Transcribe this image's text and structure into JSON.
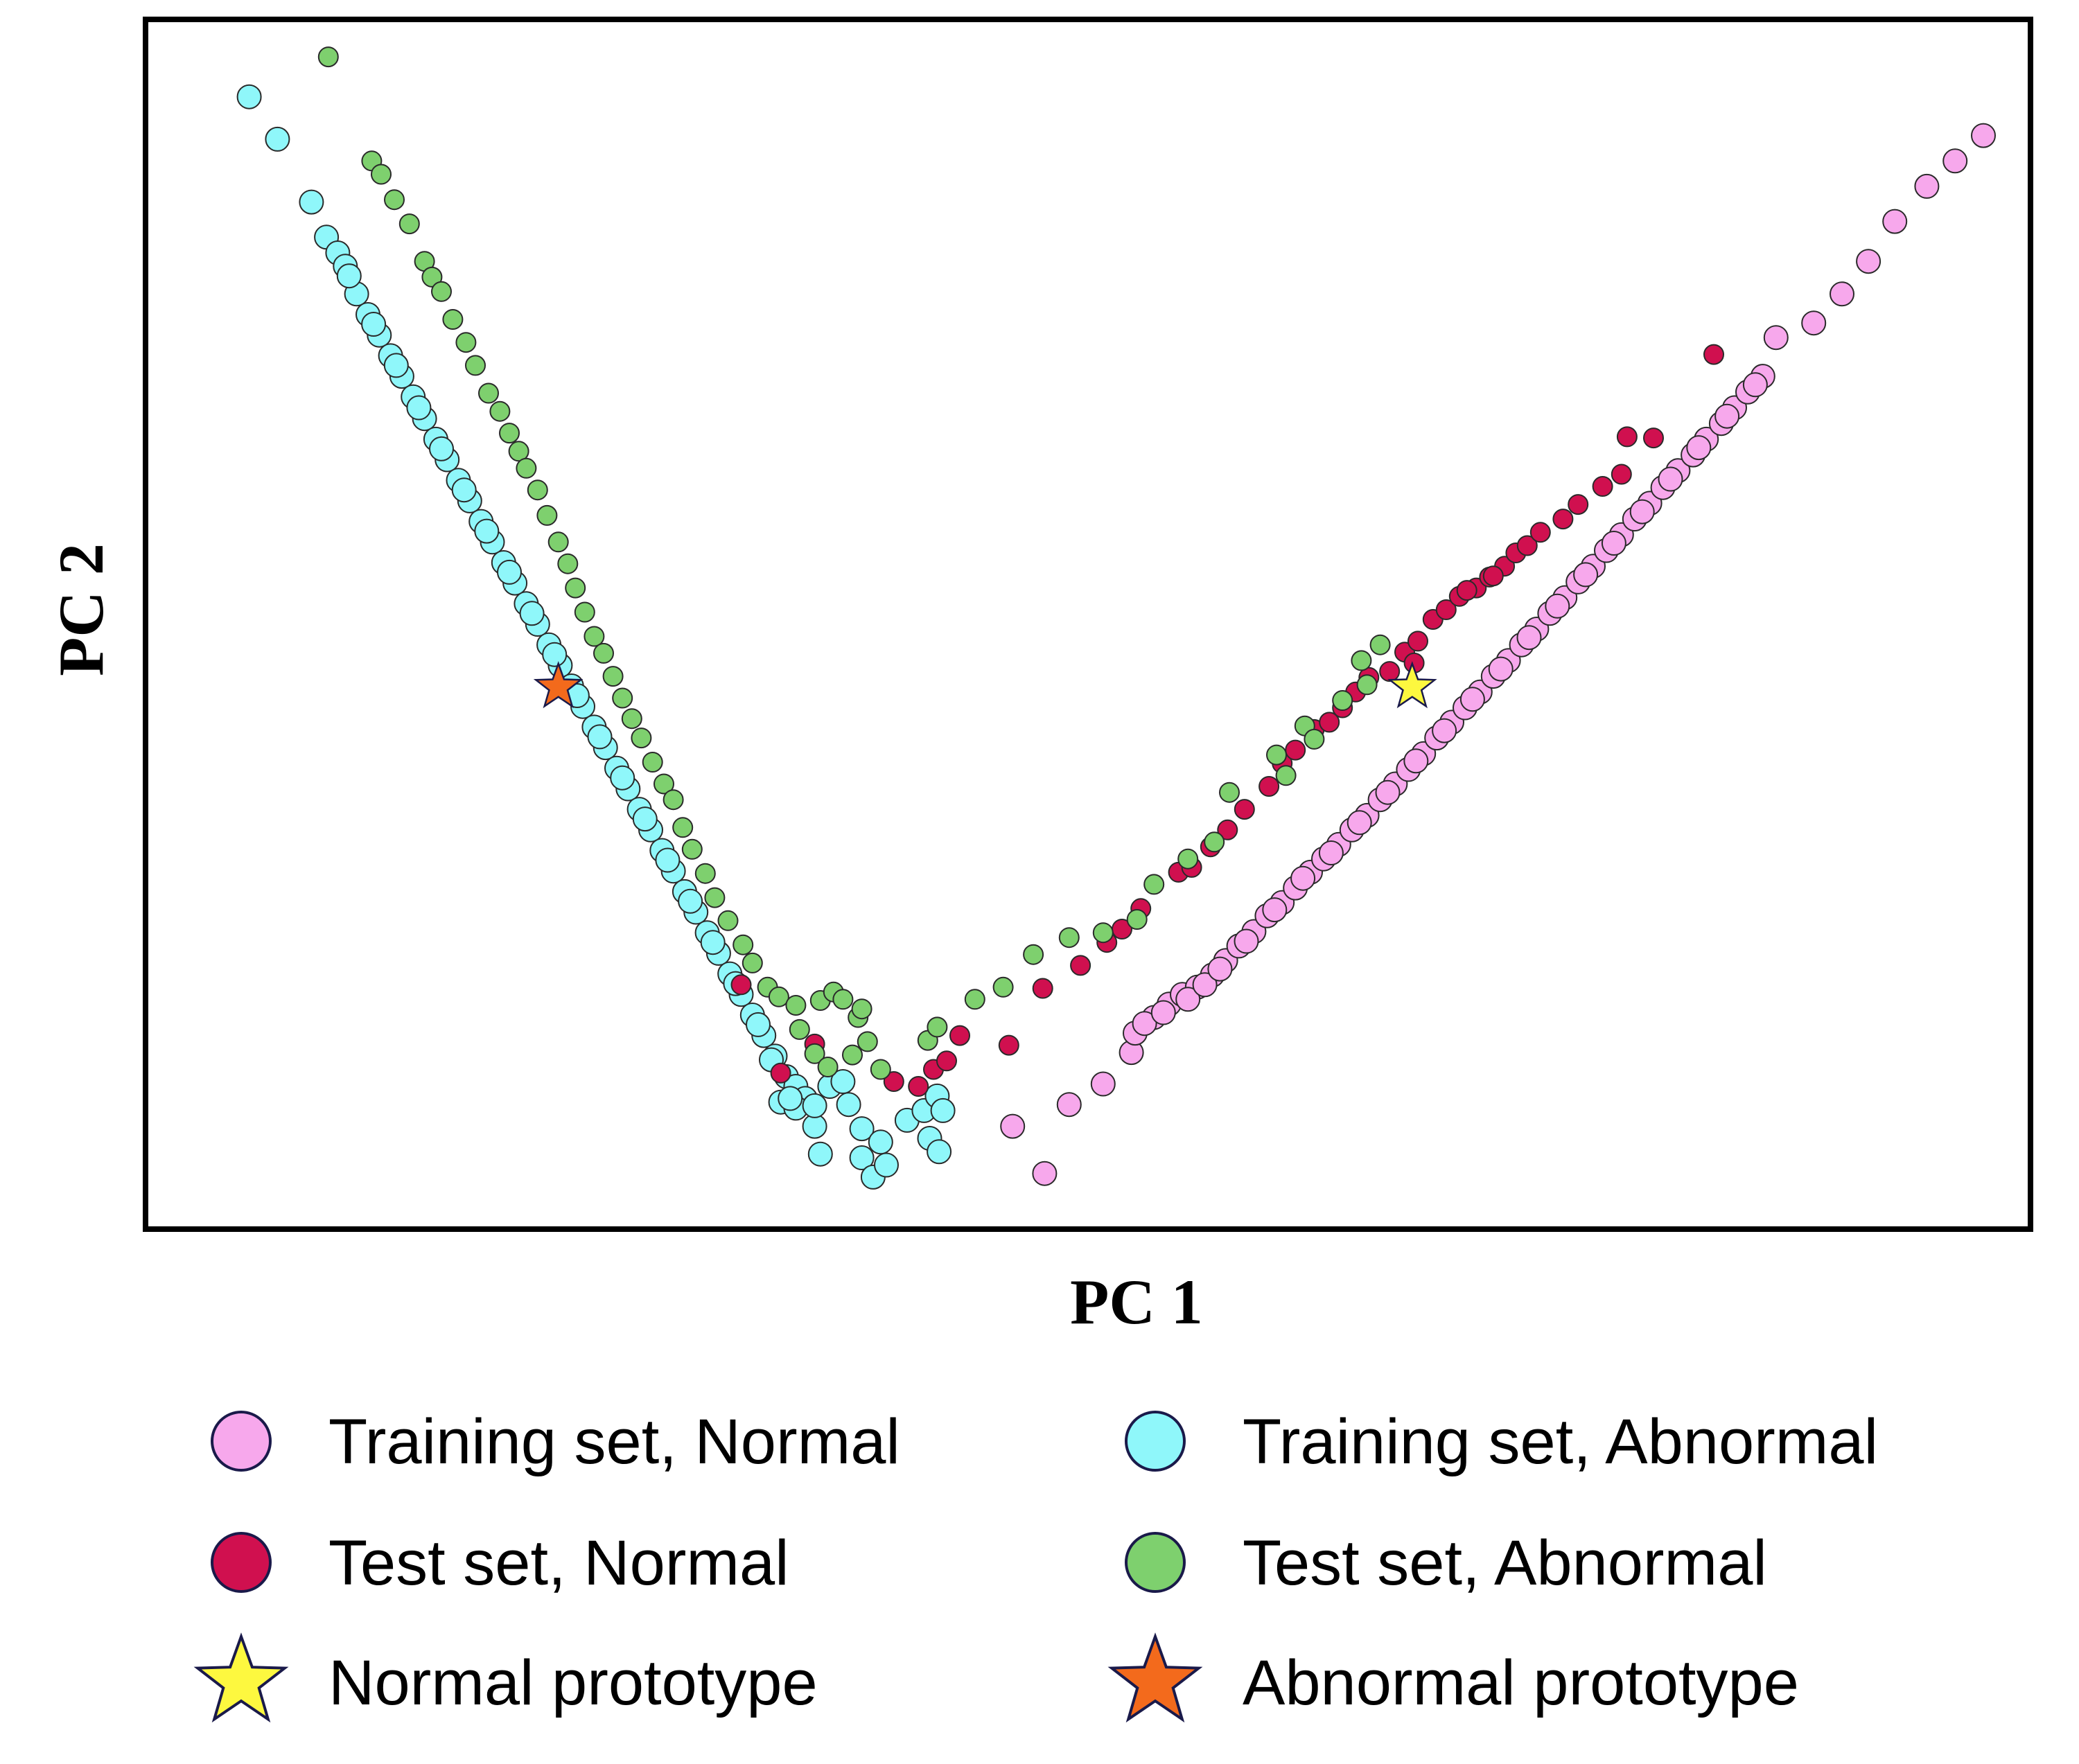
{
  "chart_data": {
    "type": "scatter",
    "title": "",
    "xlabel": "PC 1",
    "ylabel": "PC 2",
    "xlim": [
      0,
      100
    ],
    "ylim": [
      0,
      100
    ],
    "grid": false,
    "ticks_labeled": false,
    "legend_position": "bottom",
    "series": [
      {
        "name": "Training set, Normal",
        "color": "#f7a8ec",
        "marker": "circle",
        "points": [
          [
            47.7,
            4.6
          ],
          [
            46.0,
            8.5
          ],
          [
            49.0,
            10.3
          ],
          [
            50.8,
            12.0
          ],
          [
            52.3,
            14.6
          ],
          [
            52.5,
            16.2
          ],
          [
            53.5,
            17.5
          ],
          [
            54.3,
            18.6
          ],
          [
            55.0,
            19.4
          ],
          [
            55.8,
            20.0
          ],
          [
            56.6,
            21.0
          ],
          [
            57.3,
            22.2
          ],
          [
            58.0,
            23.4
          ],
          [
            58.8,
            24.6
          ],
          [
            59.5,
            25.9
          ],
          [
            60.3,
            27.0
          ],
          [
            61.0,
            28.2
          ],
          [
            61.8,
            29.5
          ],
          [
            62.5,
            30.6
          ],
          [
            63.3,
            31.8
          ],
          [
            64.0,
            33.0
          ],
          [
            64.8,
            34.2
          ],
          [
            65.5,
            35.5
          ],
          [
            66.3,
            36.8
          ],
          [
            67.0,
            38.0
          ],
          [
            67.8,
            39.3
          ],
          [
            68.5,
            40.6
          ],
          [
            69.3,
            41.9
          ],
          [
            70.0,
            43.1
          ],
          [
            70.8,
            44.4
          ],
          [
            71.5,
            45.7
          ],
          [
            72.3,
            47.0
          ],
          [
            73.0,
            48.3
          ],
          [
            73.8,
            49.6
          ],
          [
            74.5,
            50.9
          ],
          [
            75.3,
            52.2
          ],
          [
            76.0,
            53.5
          ],
          [
            76.8,
            54.8
          ],
          [
            77.5,
            56.1
          ],
          [
            78.3,
            57.4
          ],
          [
            79.0,
            58.7
          ],
          [
            79.8,
            60.0
          ],
          [
            80.5,
            61.3
          ],
          [
            81.3,
            62.7
          ],
          [
            82.1,
            64.0
          ],
          [
            82.8,
            65.3
          ],
          [
            83.6,
            66.6
          ],
          [
            84.3,
            67.9
          ],
          [
            85.0,
            69.2
          ],
          [
            85.8,
            70.5
          ],
          [
            53.0,
            17.0
          ],
          [
            54.0,
            17.9
          ],
          [
            55.3,
            19.0
          ],
          [
            56.2,
            20.2
          ],
          [
            57.0,
            21.5
          ],
          [
            58.4,
            23.8
          ],
          [
            59.9,
            26.4
          ],
          [
            61.4,
            29.0
          ],
          [
            62.9,
            31.1
          ],
          [
            64.4,
            33.6
          ],
          [
            65.9,
            36.1
          ],
          [
            67.4,
            38.7
          ],
          [
            68.9,
            41.2
          ],
          [
            70.4,
            43.8
          ],
          [
            71.9,
            46.3
          ],
          [
            73.4,
            48.9
          ],
          [
            74.9,
            51.5
          ],
          [
            76.4,
            54.1
          ],
          [
            77.9,
            56.7
          ],
          [
            79.4,
            59.3
          ],
          [
            80.9,
            62.0
          ],
          [
            82.4,
            64.6
          ],
          [
            83.9,
            67.2
          ],
          [
            85.4,
            69.8
          ],
          [
            86.5,
            73.7
          ],
          [
            88.5,
            74.9
          ],
          [
            90.0,
            77.3
          ],
          [
            91.4,
            80.0
          ],
          [
            92.8,
            83.3
          ],
          [
            94.5,
            86.2
          ],
          [
            96.0,
            88.3
          ],
          [
            97.5,
            90.4
          ]
        ]
      },
      {
        "name": "Training set, Abnormal",
        "color": "#8ff7fa",
        "marker": "circle",
        "points": [
          [
            5.5,
            93.6
          ],
          [
            7.0,
            90.1
          ],
          [
            8.8,
            84.9
          ],
          [
            9.6,
            82.0
          ],
          [
            10.2,
            80.7
          ],
          [
            10.6,
            79.6
          ],
          [
            11.2,
            77.3
          ],
          [
            11.8,
            75.6
          ],
          [
            12.4,
            73.9
          ],
          [
            13.0,
            72.2
          ],
          [
            13.6,
            70.5
          ],
          [
            14.2,
            68.8
          ],
          [
            14.8,
            67.0
          ],
          [
            15.4,
            65.3
          ],
          [
            16.0,
            63.6
          ],
          [
            16.6,
            61.9
          ],
          [
            17.2,
            60.2
          ],
          [
            17.8,
            58.5
          ],
          [
            18.4,
            56.8
          ],
          [
            19.0,
            55.1
          ],
          [
            19.6,
            53.4
          ],
          [
            20.2,
            51.7
          ],
          [
            20.8,
            50.0
          ],
          [
            21.4,
            48.3
          ],
          [
            22.0,
            46.6
          ],
          [
            22.6,
            44.9
          ],
          [
            23.2,
            43.2
          ],
          [
            23.8,
            41.5
          ],
          [
            24.4,
            39.8
          ],
          [
            25.0,
            38.1
          ],
          [
            25.6,
            36.4
          ],
          [
            26.2,
            34.7
          ],
          [
            26.8,
            33.0
          ],
          [
            27.4,
            31.3
          ],
          [
            28.0,
            29.6
          ],
          [
            28.6,
            27.9
          ],
          [
            29.2,
            26.2
          ],
          [
            29.8,
            24.5
          ],
          [
            30.4,
            22.8
          ],
          [
            31.0,
            21.1
          ],
          [
            31.6,
            19.4
          ],
          [
            32.2,
            17.7
          ],
          [
            32.8,
            16.0
          ],
          [
            33.4,
            14.3
          ],
          [
            34.0,
            12.6
          ],
          [
            10.8,
            78.8
          ],
          [
            12.1,
            74.8
          ],
          [
            13.3,
            71.4
          ],
          [
            14.5,
            67.9
          ],
          [
            15.7,
            64.5
          ],
          [
            16.9,
            61.1
          ],
          [
            18.1,
            57.7
          ],
          [
            19.3,
            54.3
          ],
          [
            20.5,
            50.9
          ],
          [
            21.7,
            47.5
          ],
          [
            22.9,
            44.1
          ],
          [
            24.1,
            40.7
          ],
          [
            25.3,
            37.3
          ],
          [
            26.5,
            33.9
          ],
          [
            27.7,
            30.5
          ],
          [
            28.9,
            27.1
          ],
          [
            30.1,
            23.7
          ],
          [
            31.3,
            20.3
          ],
          [
            32.5,
            16.9
          ],
          [
            33.2,
            14.0
          ],
          [
            34.5,
            11.8
          ],
          [
            35.0,
            10.8
          ],
          [
            33.7,
            10.5
          ],
          [
            34.5,
            10.0
          ],
          [
            34.2,
            10.8
          ],
          [
            35.5,
            8.5
          ],
          [
            35.5,
            10.2
          ],
          [
            36.3,
            11.8
          ],
          [
            37.3,
            10.3
          ],
          [
            37.0,
            12.2
          ],
          [
            38.0,
            8.3
          ],
          [
            35.8,
            6.2
          ],
          [
            38.0,
            5.9
          ],
          [
            39.0,
            7.2
          ],
          [
            38.6,
            4.3
          ],
          [
            40.4,
            9.0
          ],
          [
            41.3,
            9.8
          ],
          [
            42.0,
            11.0
          ],
          [
            42.3,
            9.8
          ],
          [
            41.6,
            7.5
          ],
          [
            42.1,
            6.4
          ],
          [
            39.3,
            5.3
          ]
        ]
      },
      {
        "name": "Test set, Normal",
        "color": "#d0104f",
        "marker": "circle",
        "points": [
          [
            31.6,
            20.2
          ],
          [
            33.7,
            12.9
          ],
          [
            35.5,
            15.3
          ],
          [
            39.7,
            12.2
          ],
          [
            41.0,
            11.8
          ],
          [
            41.8,
            13.2
          ],
          [
            42.5,
            13.9
          ],
          [
            43.2,
            16.0
          ],
          [
            45.8,
            15.2
          ],
          [
            47.6,
            19.9
          ],
          [
            49.6,
            21.8
          ],
          [
            51.0,
            23.7
          ],
          [
            51.8,
            24.8
          ],
          [
            52.8,
            26.5
          ],
          [
            54.8,
            29.5
          ],
          [
            55.5,
            29.9
          ],
          [
            56.5,
            31.6
          ],
          [
            57.4,
            33.0
          ],
          [
            58.3,
            34.7
          ],
          [
            59.6,
            36.6
          ],
          [
            60.3,
            38.5
          ],
          [
            61.0,
            39.6
          ],
          [
            62.0,
            41.3
          ],
          [
            62.8,
            41.9
          ],
          [
            63.5,
            43.1
          ],
          [
            64.2,
            44.4
          ],
          [
            64.9,
            45.6
          ],
          [
            66.0,
            46.1
          ],
          [
            66.8,
            47.7
          ],
          [
            67.5,
            48.6
          ],
          [
            68.3,
            50.4
          ],
          [
            69.0,
            51.2
          ],
          [
            69.7,
            52.3
          ],
          [
            70.6,
            53.0
          ],
          [
            71.3,
            53.9
          ],
          [
            72.1,
            54.8
          ],
          [
            72.7,
            55.9
          ],
          [
            73.3,
            56.5
          ],
          [
            74.0,
            57.6
          ],
          [
            75.2,
            58.7
          ],
          [
            76.0,
            59.9
          ],
          [
            77.3,
            61.4
          ],
          [
            78.3,
            62.4
          ],
          [
            78.6,
            65.5
          ],
          [
            80.0,
            65.4
          ],
          [
            83.2,
            72.3
          ],
          [
            67.3,
            46.8
          ],
          [
            71.5,
            54.0
          ],
          [
            70.1,
            52.8
          ]
        ]
      },
      {
        "name": "Test set, Abnormal",
        "color": "#7ed06e",
        "marker": "circle",
        "points": [
          [
            9.7,
            96.9
          ],
          [
            12.0,
            88.3
          ],
          [
            12.5,
            87.2
          ],
          [
            13.2,
            85.1
          ],
          [
            14.0,
            83.1
          ],
          [
            14.8,
            80.0
          ],
          [
            15.2,
            78.7
          ],
          [
            15.7,
            77.5
          ],
          [
            16.3,
            75.2
          ],
          [
            17.0,
            73.3
          ],
          [
            17.5,
            71.4
          ],
          [
            18.2,
            69.1
          ],
          [
            18.8,
            67.6
          ],
          [
            19.3,
            65.8
          ],
          [
            19.8,
            64.3
          ],
          [
            20.2,
            62.9
          ],
          [
            20.8,
            61.1
          ],
          [
            21.3,
            59.0
          ],
          [
            21.9,
            56.8
          ],
          [
            22.4,
            55.0
          ],
          [
            22.8,
            53.0
          ],
          [
            23.3,
            51.0
          ],
          [
            23.8,
            49.0
          ],
          [
            24.3,
            47.6
          ],
          [
            24.8,
            45.7
          ],
          [
            25.3,
            43.9
          ],
          [
            25.8,
            42.2
          ],
          [
            26.3,
            40.6
          ],
          [
            26.9,
            38.6
          ],
          [
            27.5,
            36.8
          ],
          [
            28.0,
            35.5
          ],
          [
            28.5,
            33.2
          ],
          [
            29.0,
            31.4
          ],
          [
            29.7,
            29.4
          ],
          [
            30.2,
            27.4
          ],
          [
            30.9,
            25.5
          ],
          [
            31.7,
            23.5
          ],
          [
            32.2,
            22.0
          ],
          [
            33.0,
            20.0
          ],
          [
            33.6,
            19.2
          ],
          [
            34.5,
            18.5
          ],
          [
            35.8,
            18.9
          ],
          [
            36.5,
            19.6
          ],
          [
            34.7,
            16.5
          ],
          [
            35.5,
            14.5
          ],
          [
            36.2,
            13.4
          ],
          [
            37.0,
            19.0
          ],
          [
            37.8,
            17.5
          ],
          [
            38.0,
            18.2
          ],
          [
            37.5,
            14.4
          ],
          [
            38.3,
            15.5
          ],
          [
            39.0,
            13.2
          ],
          [
            41.5,
            15.6
          ],
          [
            42.0,
            16.7
          ],
          [
            44.0,
            19.0
          ],
          [
            45.5,
            20.0
          ],
          [
            47.1,
            22.7
          ],
          [
            49.0,
            24.1
          ],
          [
            50.8,
            24.5
          ],
          [
            52.6,
            25.6
          ],
          [
            53.5,
            28.5
          ],
          [
            55.3,
            30.6
          ],
          [
            56.7,
            32.0
          ],
          [
            57.5,
            36.1
          ],
          [
            60.0,
            39.2
          ],
          [
            60.5,
            37.5
          ],
          [
            61.5,
            41.6
          ],
          [
            62.0,
            40.5
          ],
          [
            63.5,
            43.7
          ],
          [
            64.8,
            45.0
          ],
          [
            64.5,
            47.0
          ],
          [
            65.5,
            48.3
          ]
        ]
      },
      {
        "name": "Normal prototype",
        "color": "#fdf83f",
        "marker": "star",
        "points": [
          [
            67.2,
            44.8
          ]
        ]
      },
      {
        "name": "Abnormal prototype",
        "color": "#f36a1c",
        "marker": "star",
        "points": [
          [
            21.9,
            44.8
          ]
        ]
      }
    ]
  }
}
